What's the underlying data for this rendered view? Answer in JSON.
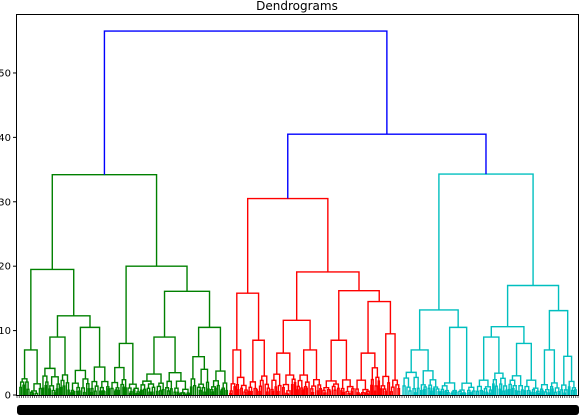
{
  "chart_data": {
    "type": "dendrogram",
    "title": "Dendrograms",
    "xlabel": "",
    "ylabel": "",
    "ylim": [
      0,
      59
    ],
    "y_ticks": [
      0,
      10,
      20,
      30,
      40,
      50
    ],
    "grid": false,
    "legend": "none",
    "colors": {
      "root_links": "#0000ff",
      "cluster_1": "#008000",
      "cluster_2": "#ff0000",
      "cluster_3": "#00bfbf",
      "leaf_labels": "#000000"
    },
    "merges": [
      {
        "cluster": "root",
        "height": 56.5,
        "children": [
          "cluster_1",
          "cluster_2_3"
        ]
      },
      {
        "cluster": "root",
        "height": 40.5,
        "children": [
          "cluster_2",
          "cluster_3"
        ]
      },
      {
        "cluster": "cluster_1",
        "height": 34.2
      },
      {
        "cluster": "cluster_1",
        "height": 19.5
      },
      {
        "cluster": "cluster_1",
        "height": 20.0
      },
      {
        "cluster": "cluster_1",
        "height": 16.1
      },
      {
        "cluster": "cluster_1",
        "height": 12.3
      },
      {
        "cluster": "cluster_1",
        "height": 10.5
      },
      {
        "cluster": "cluster_2",
        "height": 30.5
      },
      {
        "cluster": "cluster_2",
        "height": 19.1
      },
      {
        "cluster": "cluster_2",
        "height": 16.2
      },
      {
        "cluster": "cluster_2",
        "height": 15.8
      },
      {
        "cluster": "cluster_2",
        "height": 14.5
      },
      {
        "cluster": "cluster_2",
        "height": 11.6
      },
      {
        "cluster": "cluster_3",
        "height": 34.3
      },
      {
        "cluster": "cluster_3",
        "height": 17.0
      },
      {
        "cluster": "cluster_3",
        "height": 13.2
      },
      {
        "cluster": "cluster_3",
        "height": 13.1
      },
      {
        "cluster": "cluster_3",
        "height": 10.6
      }
    ]
  }
}
